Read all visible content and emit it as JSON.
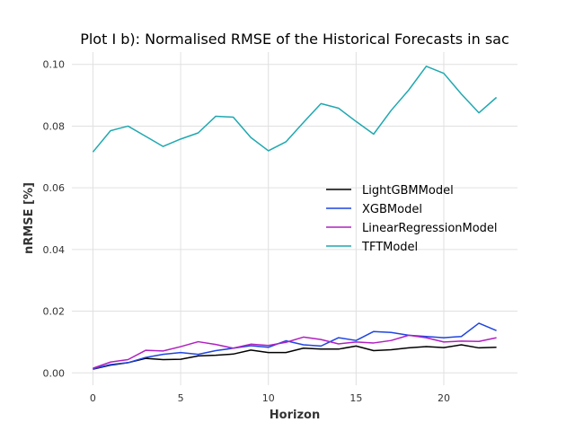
{
  "chart_data": {
    "type": "line",
    "title": "Plot I b): Normalised RMSE of the Historical Forecasts in sac",
    "xlabel": "Horizon",
    "ylabel": "nRMSE [%]",
    "xlim": [
      -1.2,
      24.2
    ],
    "ylim": [
      -0.004,
      0.104
    ],
    "xticks": [
      0,
      5,
      10,
      15,
      20
    ],
    "yticks": [
      0.0,
      0.02,
      0.04,
      0.06,
      0.08,
      0.1
    ],
    "ytick_labels": [
      "0.00",
      "0.02",
      "0.04",
      "0.06",
      "0.08",
      "0.10"
    ],
    "grid": true,
    "legend_position": "center-right",
    "x": [
      0,
      1,
      2,
      3,
      4,
      5,
      6,
      7,
      8,
      9,
      10,
      11,
      12,
      13,
      14,
      15,
      16,
      17,
      18,
      19,
      20,
      21,
      22,
      23
    ],
    "series": [
      {
        "name": "LightGBMModel",
        "color": "#000000",
        "values": [
          0.0012,
          0.0025,
          0.0033,
          0.0047,
          0.0043,
          0.0044,
          0.0055,
          0.0057,
          0.0061,
          0.0074,
          0.0066,
          0.0066,
          0.008,
          0.0077,
          0.0077,
          0.0087,
          0.0072,
          0.0075,
          0.0081,
          0.0085,
          0.0082,
          0.0091,
          0.0081,
          0.0083
        ]
      },
      {
        "name": "XGBModel",
        "color": "#1f45e0",
        "values": [
          0.0013,
          0.0027,
          0.0033,
          0.005,
          0.006,
          0.0066,
          0.006,
          0.0072,
          0.008,
          0.0088,
          0.0083,
          0.0104,
          0.0091,
          0.0087,
          0.0114,
          0.0105,
          0.0134,
          0.0131,
          0.0122,
          0.0118,
          0.0114,
          0.0118,
          0.0161,
          0.0137
        ]
      },
      {
        "name": "LinearRegressionModel",
        "color": "#b020c0",
        "values": [
          0.0015,
          0.0035,
          0.0043,
          0.0073,
          0.0071,
          0.0085,
          0.0101,
          0.0092,
          0.008,
          0.0093,
          0.0089,
          0.0099,
          0.0116,
          0.0108,
          0.0094,
          0.01,
          0.0097,
          0.0105,
          0.0122,
          0.0114,
          0.01,
          0.0103,
          0.0102,
          0.0114
        ]
      },
      {
        "name": "TFTModel",
        "color": "#1fa8b0",
        "values": [
          0.0716,
          0.0785,
          0.08,
          0.0767,
          0.0734,
          0.0758,
          0.0778,
          0.0832,
          0.0829,
          0.0763,
          0.072,
          0.0749,
          0.0812,
          0.0873,
          0.0858,
          0.0815,
          0.0774,
          0.0851,
          0.0917,
          0.0994,
          0.0971,
          0.0904,
          0.0843,
          0.0893
        ]
      }
    ]
  }
}
